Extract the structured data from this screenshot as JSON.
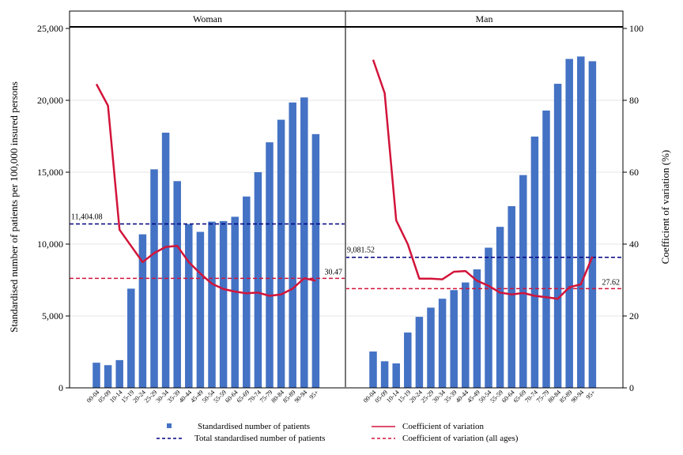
{
  "chart_data": {
    "type": "bar",
    "panels": [
      "Woman",
      "Man"
    ],
    "categories": [
      "00-04",
      "05-09",
      "10-14",
      "15-19",
      "20-24",
      "25-29",
      "30-34",
      "35-39",
      "40-44",
      "45-49",
      "50-54",
      "55-59",
      "60-64",
      "65-69",
      "70-74",
      "75-79",
      "80-84",
      "85-89",
      "90-94",
      "95+"
    ],
    "ylabel": "Standardised number of patients per 100,000 insured persons",
    "y2label": "Coefficient of variation (%)",
    "ylim": [
      0,
      25000
    ],
    "y2lim": [
      0,
      100
    ],
    "yticks": [
      "0",
      "5,000",
      "10,000",
      "15,000",
      "20,000",
      "25,000"
    ],
    "y2ticks": [
      "0",
      "20",
      "40",
      "60",
      "80",
      "100"
    ],
    "series": [
      {
        "name": "Standardised number of patients",
        "type": "bar",
        "axis": "left",
        "color": "#4472c4",
        "woman": [
          1750,
          1580,
          1930,
          6900,
          10680,
          15200,
          17750,
          14380,
          11380,
          10850,
          11560,
          11600,
          11900,
          13310,
          15000,
          17080,
          18650,
          19850,
          20200,
          17650
        ],
        "man": [
          2530,
          1850,
          1700,
          3850,
          4940,
          5580,
          6200,
          6800,
          7330,
          8240,
          9750,
          11200,
          12640,
          14800,
          17480,
          19290,
          21150,
          22880,
          23050,
          22720
        ]
      },
      {
        "name": "Coefficient of variation",
        "type": "line",
        "axis": "right",
        "color": "#d2143a",
        "woman": [
          84.5,
          78.5,
          44,
          39.5,
          35,
          37.5,
          39.2,
          39.5,
          35,
          31.8,
          29,
          27.5,
          26.8,
          26.3,
          26.5,
          25.6,
          26,
          27.6,
          30.5,
          29.8
        ],
        "man": [
          91.3,
          82,
          46.6,
          40,
          30.4,
          30.4,
          30.2,
          32.3,
          32.5,
          29.8,
          28.4,
          26.5,
          26,
          26.4,
          25.6,
          25.2,
          24.8,
          28,
          28.8,
          36.5
        ]
      },
      {
        "name": "Total standardised number of patients",
        "type": "hline",
        "axis": "left",
        "color": "#000080",
        "woman": 11404.08,
        "man": 9081.52,
        "labels": {
          "woman": "11,404.08",
          "man": "9,081.52"
        }
      },
      {
        "name": "Coefficient of variation (all ages)",
        "type": "hline",
        "axis": "right",
        "color": "#d2143a",
        "woman": 30.47,
        "man": 27.62,
        "labels": {
          "woman": "30.47",
          "man": "27.62"
        }
      }
    ],
    "legend_position": "bottom"
  }
}
